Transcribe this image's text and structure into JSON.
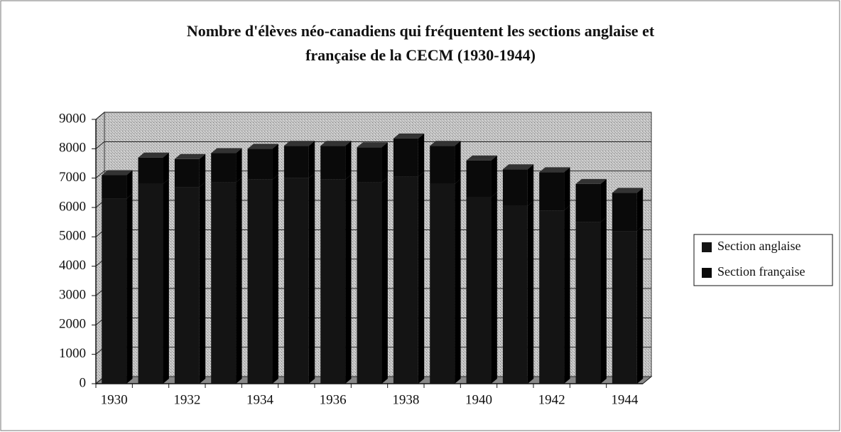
{
  "chart_data": {
    "type": "bar",
    "stacked": true,
    "title": [
      "Nombre d'élèves néo-canadiens qui fréquentent les sections anglaise et",
      "française de la CECM (1930-1944)"
    ],
    "categories": [
      "1930",
      null,
      "1932",
      null,
      "1934",
      null,
      "1936",
      null,
      "1938",
      null,
      "1940",
      null,
      "1942",
      null,
      "1944"
    ],
    "series": [
      {
        "name": "Section anglaise",
        "color": "#141414",
        "values": [
          6300,
          6800,
          6700,
          6850,
          6950,
          7000,
          6950,
          6850,
          7050,
          6800,
          6350,
          6050,
          5900,
          5500,
          5200
        ]
      },
      {
        "name": "Section française",
        "color": "#0a0a0a",
        "values": [
          800,
          900,
          950,
          1000,
          1050,
          1100,
          1150,
          1200,
          1300,
          1300,
          1250,
          1250,
          1300,
          1300,
          1300
        ]
      }
    ],
    "ylim": [
      0,
      9000
    ],
    "yticks": [
      0,
      1000,
      2000,
      3000,
      4000,
      5000,
      6000,
      7000,
      8000,
      9000
    ],
    "grid": true,
    "legend": "right"
  }
}
